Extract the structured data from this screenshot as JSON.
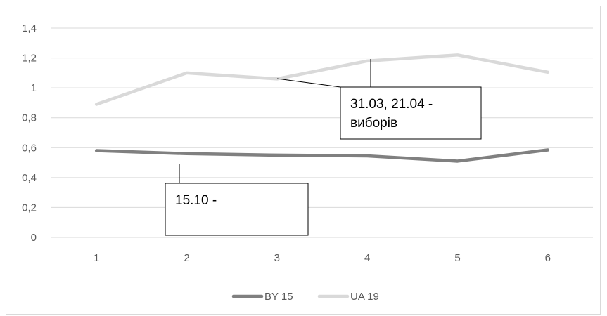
{
  "chart_data": {
    "type": "line",
    "x": [
      1,
      2,
      3,
      4,
      5,
      6
    ],
    "ylim": [
      0,
      1.4
    ],
    "y_ticks": [
      "0",
      "0,2",
      "0,4",
      "0,6",
      "0,8",
      "1",
      "1,2",
      "1,4"
    ],
    "x_ticks": [
      "1",
      "2",
      "3",
      "4",
      "5",
      "6"
    ],
    "grid": true,
    "legend_position": "bottom",
    "series": [
      {
        "name": "BY 15",
        "values": [
          0.58,
          0.56,
          0.55,
          0.545,
          0.51,
          0.585
        ],
        "color": "#808080"
      },
      {
        "name": "UA 19",
        "values": [
          0.89,
          1.1,
          1.06,
          1.18,
          1.22,
          1.105
        ],
        "color": "#d9d9d9"
      }
    ],
    "annotations": [
      {
        "lines": [
          "31.03, 21.04 -",
          "виборів"
        ],
        "target_x": 4,
        "target_y": 1.18
      },
      {
        "lines": [
          "15.10 -"
        ],
        "target_x": 2.0,
        "target_y": 0.49
      }
    ]
  }
}
